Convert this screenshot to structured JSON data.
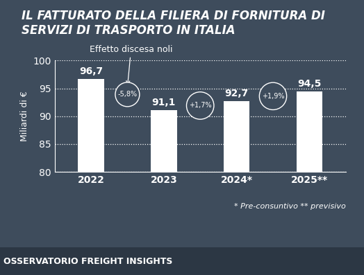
{
  "chart_data": {
    "type": "bar",
    "title": "IL FATTURATO DELLA FILIERA DI FORNITURA DI SERVIZI DI TRASPORTO IN ITALIA",
    "y_label": "Miliardi di €",
    "categories": [
      "2022",
      "2023",
      "2024*",
      "2025**"
    ],
    "values": [
      96.7,
      91.1,
      92.7,
      94.5
    ],
    "value_labels": [
      "96,7",
      "91,1",
      "92,7",
      "94,5"
    ],
    "data_labels": true,
    "color": "#ffffff",
    "ylim": [
      80,
      100
    ],
    "yticks": [
      80,
      85,
      90,
      95,
      100
    ],
    "grid": true,
    "change_labels": [
      "-5,8%",
      "+1,7%",
      "+1,9%"
    ],
    "annotation": "Effetto discesa noli",
    "note": "* Pre-consuntivo ** previsivo",
    "source": "OSSERVATORIO FREIGHT INSIGHTS"
  }
}
